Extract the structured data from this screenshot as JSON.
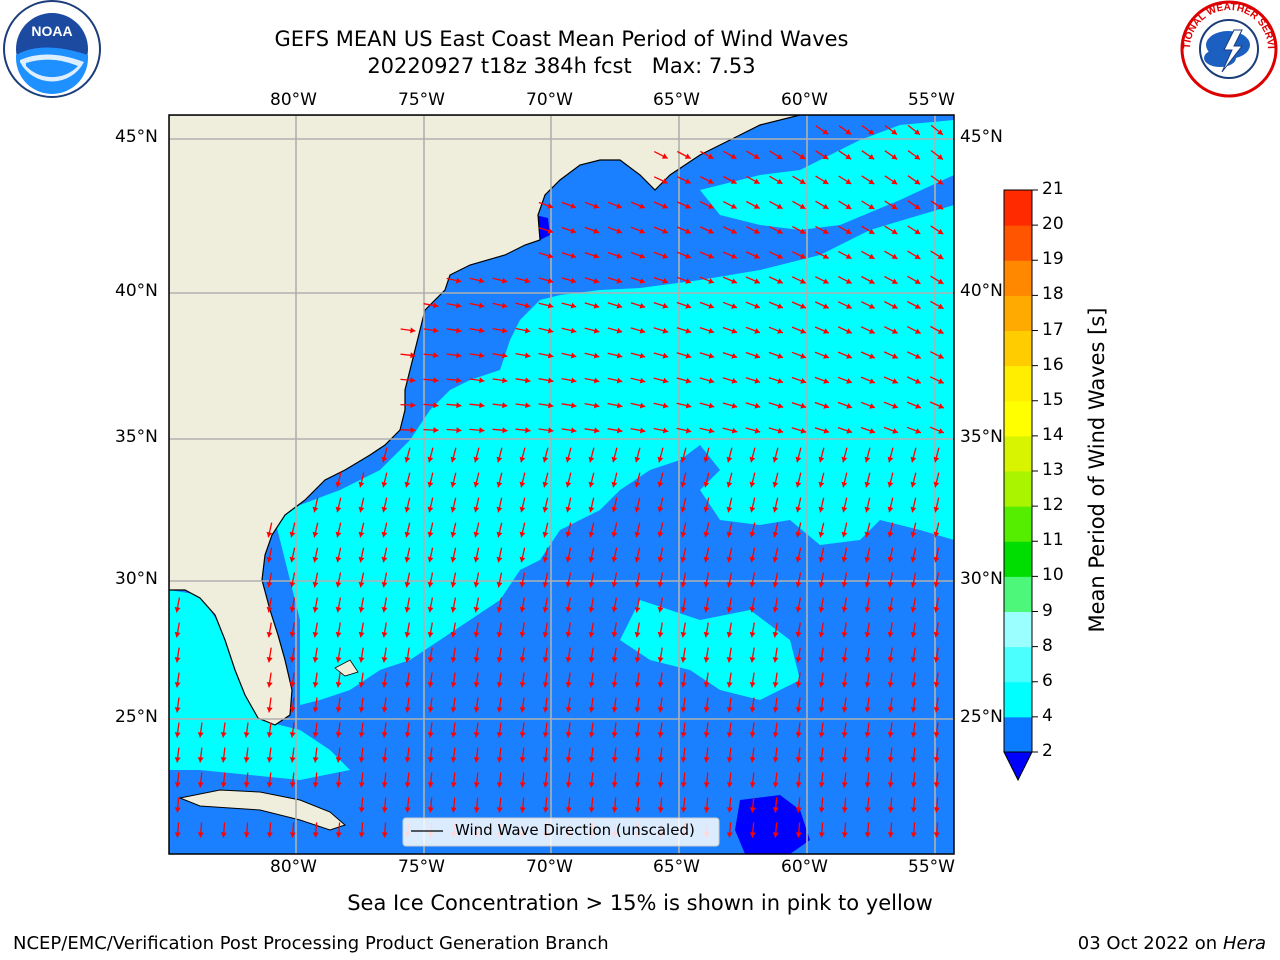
{
  "header": {
    "title_line1": "GEFS MEAN US East Coast Mean Period of Wind Waves",
    "title_line2": "20220927 t18z 384h fcst   Max: 7.53"
  },
  "logos": {
    "left": {
      "name": "NOAA",
      "ring_text": "NATIONAL OCEANIC AND ATMOSPHERIC ADMINISTRATION · U.S. DEPARTMENT OF COMMERCE"
    },
    "right": {
      "name": "NATIONAL WEATHER SERVICE"
    }
  },
  "map": {
    "lon_labels": [
      "80°W",
      "75°W",
      "70°W",
      "65°W",
      "60°W",
      "55°W"
    ],
    "lat_labels": [
      "45°N",
      "40°N",
      "35°N",
      "30°N",
      "25°N"
    ],
    "lon_values": [
      -80,
      -75,
      -70,
      -65,
      -60,
      -55
    ],
    "lat_values": [
      45,
      40,
      35,
      30,
      25
    ],
    "lon_range": [
      -85,
      -54.4
    ],
    "lat_range": [
      20.3,
      46
    ],
    "legend_label": "Wind Wave Direction (unscaled)",
    "colors": {
      "land": "#efeddc",
      "period_2_4": "#1a80ff",
      "period_4_6": "#00ffff",
      "period_below_2": "#0000ff",
      "arrow": "#ff0000",
      "grid": "#b0b0b0"
    }
  },
  "colorbar": {
    "label": "Mean Period of Wind Waves [s]",
    "ticks": [
      "2",
      "4",
      "6",
      "8",
      "9",
      "10",
      "11",
      "12",
      "13",
      "14",
      "15",
      "16",
      "17",
      "18",
      "19",
      "20",
      "21"
    ],
    "colors": [
      "#0a7aff",
      "#00ffff",
      "#4cffff",
      "#9cffff",
      "#4cf77a",
      "#00dd00",
      "#55ee00",
      "#aaf400",
      "#d8f400",
      "#ffff00",
      "#ffee00",
      "#ffcc00",
      "#ffaa00",
      "#ff8800",
      "#ff5500",
      "#ff2a00",
      "#ff0000"
    ],
    "extend_color": "#0000ff"
  },
  "footer": {
    "note": "Sea Ice Concentration > 15% is shown in pink to yellow",
    "left": "NCEP/EMC/Verification Post Processing Product Generation Branch",
    "right_date": "03 Oct 2022 on",
    "right_machine": "Hera"
  }
}
